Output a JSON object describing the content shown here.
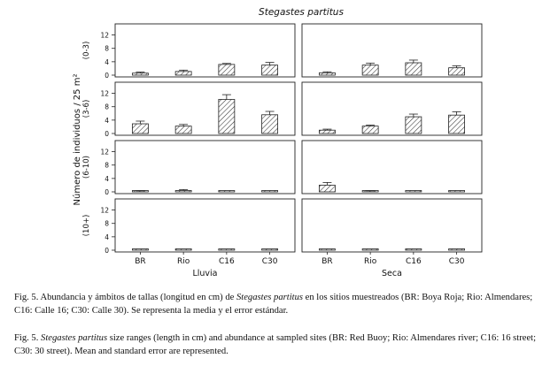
{
  "chart_data": {
    "type": "bar",
    "title": "Stegastes partitus",
    "ylabel": "Número de individuos / 25 m²",
    "ylim": [
      0,
      14
    ],
    "yticks": [
      0,
      4,
      8,
      12
    ],
    "categories": [
      "BR",
      "Rio",
      "C16",
      "C30"
    ],
    "columns": [
      "Lluvia",
      "Seca"
    ],
    "rows": [
      "(0-3)",
      "(3-6)",
      "(6-10)",
      "(10+)"
    ],
    "bar_fill": "hatched",
    "error_bars": "standard error",
    "panels": [
      {
        "season": "Lluvia",
        "size_class": "(0-3)",
        "values": [
          0.6,
          1.1,
          3.2,
          3.0
        ],
        "errors": [
          0.3,
          0.4,
          0.3,
          0.8
        ]
      },
      {
        "season": "Seca",
        "size_class": "(0-3)",
        "values": [
          0.7,
          3.0,
          3.7,
          2.2
        ],
        "errors": [
          0.3,
          0.6,
          0.8,
          0.6
        ]
      },
      {
        "season": "Lluvia",
        "size_class": "(3-6)",
        "values": [
          2.9,
          2.2,
          10.2,
          5.6
        ],
        "errors": [
          0.8,
          0.5,
          1.4,
          1.0
        ]
      },
      {
        "season": "Seca",
        "size_class": "(3-6)",
        "values": [
          1.0,
          2.2,
          5.0,
          5.5
        ],
        "errors": [
          0.3,
          0.3,
          0.8,
          1.0
        ]
      },
      {
        "season": "Lluvia",
        "size_class": "(6-10)",
        "values": [
          0.2,
          0.4,
          0.1,
          0.1
        ],
        "errors": [
          0.1,
          0.3,
          0.0,
          0.0
        ]
      },
      {
        "season": "Seca",
        "size_class": "(6-10)",
        "values": [
          2.0,
          0.2,
          0.1,
          0.1
        ],
        "errors": [
          0.8,
          0.1,
          0.0,
          0.0
        ]
      },
      {
        "season": "Lluvia",
        "size_class": "(10+)",
        "values": [
          0,
          0,
          0,
          0
        ],
        "errors": [
          0,
          0,
          0,
          0
        ]
      },
      {
        "season": "Seca",
        "size_class": "(10+)",
        "values": [
          0,
          0,
          0,
          0
        ],
        "errors": [
          0,
          0,
          0,
          0
        ]
      }
    ]
  },
  "captions": {
    "es": {
      "prefix": "Fig. 5. Abundancia y ámbitos de tallas (longitud en cm) de ",
      "species": "Stegastes partitus",
      "suffix": " en los sitios muestreados (BR: Boya Roja; Rio: Almendares; C16: Calle 16; C30: Calle 30). Se representa la media y el error estándar."
    },
    "en": {
      "prefix": "Fig. 5. ",
      "species": "Stegastes partitus",
      "suffix": " size ranges (length in cm) and abundance at sampled sites (BR: Red Buoy; Rio: Almendares river; C16: 16 street; C30: 30 street). Mean and standard error are represented."
    }
  }
}
